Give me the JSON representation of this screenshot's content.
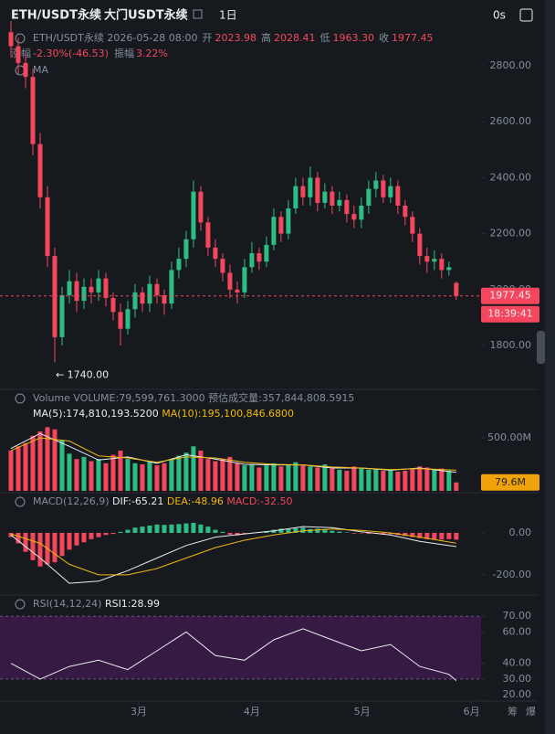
{
  "header": {
    "symbol": "ETH/USDT永续",
    "name": "大门USDT永续",
    "interval": "1日",
    "timer": "0s"
  },
  "footer": {
    "chip": "筹",
    "burst": "爆"
  },
  "chart_data": [
    {
      "type": "candlestick",
      "indicator": "MA",
      "symbol_line": "ETH/USDT永续 2026-05-28 08:00",
      "ohlc_labels": [
        {
          "label": "开",
          "value": "2023.98"
        },
        {
          "label": "高",
          "value": "2028.41"
        },
        {
          "label": "低",
          "value": "1963.30"
        },
        {
          "label": "收",
          "value": "1977.45"
        }
      ],
      "change": [
        {
          "label": "涨幅",
          "value": "-2.30%(-46.53)"
        },
        {
          "label": "振幅",
          "value": "3.22%"
        }
      ],
      "low_label": "← 1740.00",
      "last_price_label": "1977.45",
      "countdown": "18:39:41",
      "up_color": "#2ebd85",
      "down_color": "#f6465d",
      "xlim": [
        -1.5,
        64.4
      ],
      "ylim": [
        1663,
        2937
      ],
      "yticks": [
        {
          "value": 1800,
          "label": "1800.00"
        },
        {
          "value": 2000,
          "label": "2000.00"
        },
        {
          "value": 2200,
          "label": "2200.00"
        },
        {
          "value": 2400,
          "label": "2400.00"
        },
        {
          "value": 2600,
          "label": "2600.00"
        },
        {
          "value": 2800,
          "label": "2800.00"
        }
      ],
      "open": [
        2920,
        2870,
        2810,
        2760,
        2520,
        2330,
        2120,
        1830,
        1980,
        2030,
        1960,
        2010,
        1990,
        2040,
        1970,
        1920,
        1860,
        1930,
        1990,
        1950,
        2020,
        1980,
        1950,
        2070,
        2110,
        2180,
        2350,
        2240,
        2150,
        2110,
        2060,
        2000,
        1990,
        2080,
        2130,
        2100,
        2160,
        2260,
        2200,
        2290,
        2370,
        2330,
        2400,
        2310,
        2350,
        2300,
        2320,
        2270,
        2250,
        2300,
        2360,
        2390,
        2330,
        2370,
        2300,
        2260,
        2200,
        2120,
        2100,
        2110,
        2070,
        2023.98
      ],
      "high": [
        2960,
        2900,
        2840,
        2790,
        2560,
        2370,
        2150,
        2010,
        2070,
        2060,
        2040,
        2040,
        2070,
        2060,
        1990,
        1950,
        1960,
        2020,
        2010,
        2050,
        2040,
        2000,
        2100,
        2150,
        2210,
        2390,
        2370,
        2260,
        2180,
        2130,
        2090,
        2030,
        2110,
        2170,
        2150,
        2190,
        2290,
        2280,
        2320,
        2400,
        2400,
        2440,
        2420,
        2380,
        2370,
        2350,
        2340,
        2300,
        2330,
        2390,
        2420,
        2410,
        2400,
        2390,
        2320,
        2280,
        2220,
        2150,
        2140,
        2130,
        2100,
        2028.41
      ],
      "low": [
        2830,
        2770,
        2720,
        2480,
        2290,
        2080,
        1740,
        1800,
        1950,
        1920,
        1930,
        1950,
        1960,
        1940,
        1890,
        1800,
        1840,
        1900,
        1920,
        1920,
        1950,
        1910,
        1930,
        2040,
        2080,
        2150,
        2210,
        2120,
        2080,
        2030,
        1970,
        1950,
        1970,
        2060,
        2070,
        2080,
        2140,
        2170,
        2180,
        2270,
        2300,
        2300,
        2280,
        2290,
        2270,
        2280,
        2240,
        2220,
        2220,
        2270,
        2330,
        2310,
        2310,
        2270,
        2230,
        2170,
        2090,
        2060,
        2070,
        2040,
        2050,
        1963.3
      ],
      "close": [
        2870,
        2810,
        2760,
        2520,
        2330,
        2120,
        1830,
        1980,
        2030,
        1960,
        2010,
        1990,
        2040,
        1970,
        1920,
        1860,
        1930,
        1990,
        1950,
        2020,
        1980,
        1950,
        2070,
        2110,
        2180,
        2350,
        2240,
        2150,
        2110,
        2060,
        2000,
        1990,
        2080,
        2130,
        2100,
        2160,
        2260,
        2200,
        2290,
        2370,
        2330,
        2400,
        2310,
        2350,
        2300,
        2320,
        2270,
        2250,
        2300,
        2360,
        2390,
        2330,
        2370,
        2300,
        2260,
        2200,
        2120,
        2100,
        2110,
        2070,
        2080,
        1977.45
      ]
    },
    {
      "type": "volume",
      "indicator": "Volume",
      "info": "VOLUME:79,599,761.3000",
      "info2": "预估成交量:357,844,808.5915",
      "last_label": "79.6M",
      "ylim": [
        0,
        922
      ],
      "yticks": [
        {
          "value": 500,
          "label": "500.00M"
        }
      ],
      "values": [
        380,
        420,
        450,
        520,
        560,
        600,
        580,
        480,
        350,
        300,
        320,
        280,
        300,
        260,
        340,
        380,
        300,
        260,
        250,
        280,
        240,
        260,
        300,
        330,
        360,
        420,
        380,
        300,
        280,
        300,
        320,
        260,
        240,
        250,
        220,
        240,
        260,
        230,
        250,
        270,
        240,
        230,
        220,
        250,
        210,
        200,
        190,
        230,
        220,
        200,
        210,
        190,
        200,
        180,
        190,
        210,
        230,
        220,
        200,
        210,
        190,
        79.6
      ],
      "series": [
        {
          "name": "MA(5):174,810,193.5200",
          "color": "#eaecef",
          "x": [
            0,
            4,
            8,
            12,
            16,
            20,
            24,
            28,
            32,
            36,
            40,
            44,
            48,
            52,
            56,
            61
          ],
          "values": [
            400,
            540,
            420,
            290,
            320,
            260,
            340,
            300,
            250,
            245,
            245,
            215,
            215,
            195,
            215,
            174.8
          ]
        },
        {
          "name": "MA(10):195,100,846.6800",
          "color": "#f0b90b",
          "x": [
            0,
            4,
            8,
            12,
            16,
            20,
            24,
            28,
            32,
            36,
            40,
            44,
            48,
            52,
            56,
            61
          ],
          "values": [
            380,
            500,
            470,
            330,
            310,
            270,
            320,
            310,
            270,
            250,
            245,
            225,
            215,
            200,
            210,
            195.1
          ]
        }
      ]
    },
    {
      "type": "macd",
      "indicator": "MACD(12,26,9)",
      "ylim": [
        -283,
        187
      ],
      "yticks": [
        {
          "value": 0,
          "label": "0.00"
        },
        {
          "value": -200,
          "label": "-200.00"
        }
      ],
      "series": [
        {
          "name": "DIF:-65.21",
          "color": "#eaecef",
          "x": [
            0,
            4,
            8,
            12,
            16,
            20,
            24,
            28,
            32,
            36,
            40,
            44,
            48,
            52,
            56,
            61
          ],
          "values": [
            -10,
            -120,
            -240,
            -230,
            -180,
            -120,
            -60,
            -20,
            -5,
            10,
            30,
            25,
            5,
            -10,
            -40,
            -65.21
          ]
        },
        {
          "name": "DEA:-48.96",
          "color": "#f0b90b",
          "x": [
            0,
            4,
            8,
            12,
            16,
            20,
            24,
            28,
            32,
            36,
            40,
            44,
            48,
            52,
            56,
            61
          ],
          "values": [
            -5,
            -50,
            -150,
            -200,
            -200,
            -170,
            -120,
            -70,
            -35,
            -10,
            10,
            18,
            12,
            0,
            -20,
            -48.96
          ]
        },
        {
          "name": "MACD:-32.50",
          "color": "#f6465d",
          "values": [
            -20,
            -50,
            -90,
            -130,
            -160,
            -150,
            -140,
            -110,
            -80,
            -60,
            -45,
            -30,
            -20,
            -10,
            -5,
            5,
            15,
            25,
            30,
            35,
            40,
            38,
            40,
            42,
            45,
            48,
            40,
            30,
            15,
            5,
            -8,
            -12,
            -5,
            0,
            3,
            8,
            15,
            20,
            18,
            22,
            25,
            18,
            20,
            15,
            10,
            6,
            2,
            -3,
            -2,
            -5,
            -3,
            -8,
            -6,
            -10,
            -15,
            -20,
            -25,
            -30,
            -30,
            -32,
            -30,
            -32.5
          ]
        }
      ]
    },
    {
      "type": "rsi",
      "indicator": "RSI(14,12,24)",
      "band": [
        30,
        70
      ],
      "ylim": [
        17.1,
        81.2
      ],
      "yticks": [
        {
          "value": 20,
          "label": "20.00"
        },
        {
          "value": 30,
          "label": "30.00"
        },
        {
          "value": 40,
          "label": "40.00"
        },
        {
          "value": 60,
          "label": "60.00"
        },
        {
          "value": 70,
          "label": "70.00"
        }
      ],
      "xticks": [
        {
          "value": 17.5,
          "label": "3月"
        },
        {
          "value": 33,
          "label": "4月"
        },
        {
          "value": 48.1,
          "label": "5月"
        },
        {
          "value": 63.1,
          "label": "6月"
        }
      ],
      "series": [
        {
          "name": "RSI1:28.99",
          "color": "#eaecef",
          "x": [
            0,
            4,
            8,
            12,
            16,
            20,
            24,
            28,
            32,
            36,
            40,
            44,
            48,
            52,
            56,
            60,
            61
          ],
          "values": [
            40,
            30,
            38,
            42,
            36,
            48,
            60,
            45,
            42,
            55,
            62,
            55,
            48,
            52,
            38,
            33,
            28.99
          ]
        }
      ]
    }
  ]
}
